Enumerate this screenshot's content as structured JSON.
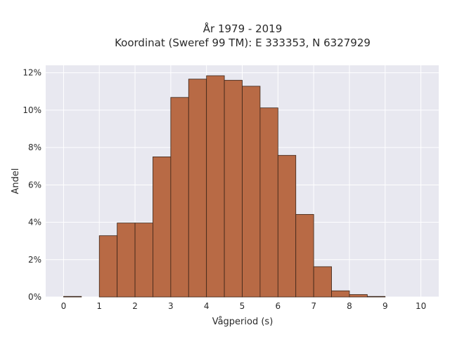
{
  "chart_data": {
    "type": "bar",
    "title_line1": "År 1979 - 2019",
    "title_line2": "Koordinat (Sweref 99 TM): E 333353, N 6327929",
    "xlabel": "Vågperiod (s)",
    "ylabel": "Andel",
    "xlim": [
      -0.5,
      10.5
    ],
    "ylim": [
      0,
      12.4
    ],
    "x_ticks": [
      0,
      1,
      2,
      3,
      4,
      5,
      6,
      7,
      8,
      9,
      10
    ],
    "x_tick_labels": [
      "0",
      "1",
      "2",
      "3",
      "4",
      "5",
      "6",
      "7",
      "8",
      "9",
      "10"
    ],
    "y_ticks": [
      0,
      2,
      4,
      6,
      8,
      10,
      12
    ],
    "y_tick_labels": [
      "0%",
      "2%",
      "4%",
      "6%",
      "8%",
      "10%",
      "12%"
    ],
    "bin_width": 0.5,
    "bin_starts": [
      0,
      0.5,
      1,
      1.5,
      2,
      2.5,
      3,
      3.5,
      4,
      4.5,
      5,
      5.5,
      6,
      6.5,
      7,
      7.5,
      8,
      8.5,
      9,
      9.5
    ],
    "values": [
      0.03,
      0,
      3.28,
      3.96,
      3.96,
      7.5,
      10.68,
      11.66,
      11.84,
      11.6,
      11.28,
      10.12,
      7.58,
      4.42,
      1.62,
      0.33,
      0.13,
      0.03,
      0,
      0
    ],
    "grid": true,
    "colors": {
      "bar_fill": "#b86a45",
      "bar_edge": "#3a2418",
      "plot_background": "#e8e8f0",
      "grid": "#ffffff"
    }
  }
}
